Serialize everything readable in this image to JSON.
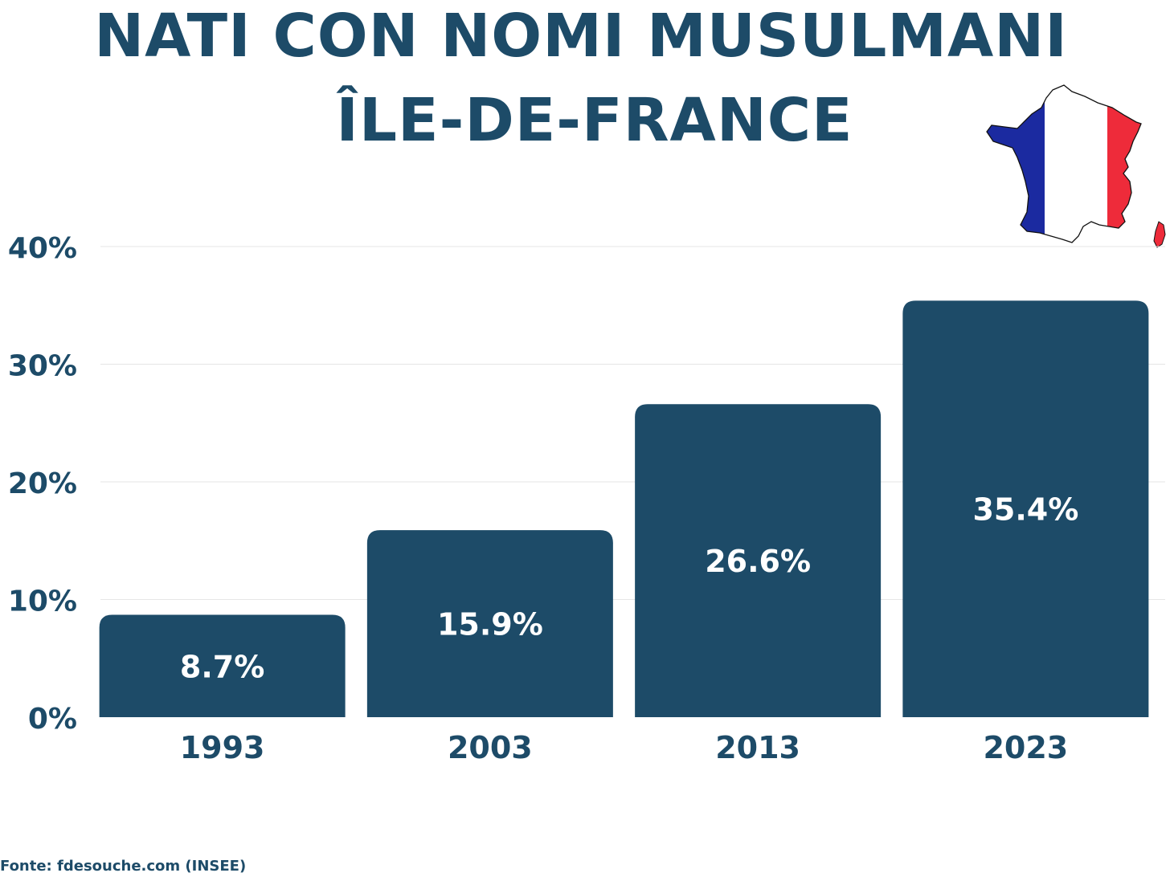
{
  "chart_data": {
    "type": "bar",
    "title": "NATI CON NOMI MUSULMANI",
    "subtitle": "ÎLE-DE-FRANCE",
    "categories": [
      "1993",
      "2003",
      "2013",
      "2023"
    ],
    "values": [
      8.7,
      15.9,
      26.6,
      35.4
    ],
    "data_labels": [
      "8.7%",
      "15.9%",
      "26.6%",
      "35.4%"
    ],
    "ylim": [
      0,
      40
    ],
    "yticks": [
      0,
      10,
      20,
      30,
      40
    ],
    "ytick_labels": [
      "0%",
      "10%",
      "20%",
      "30%",
      "40%"
    ],
    "xlabel": "",
    "ylabel": "",
    "grid": true,
    "bar_color": "#1d4b68"
  },
  "source": "Fonte: fdesouche.com (INSEE)",
  "colors": {
    "primary": "#1d4b68",
    "grid": "#e6e6e6",
    "flag_blue": "#1b2aa0",
    "flag_white": "#ffffff",
    "flag_red": "#ee2b3a"
  },
  "icons": {
    "map": "france-flag-map-icon"
  }
}
